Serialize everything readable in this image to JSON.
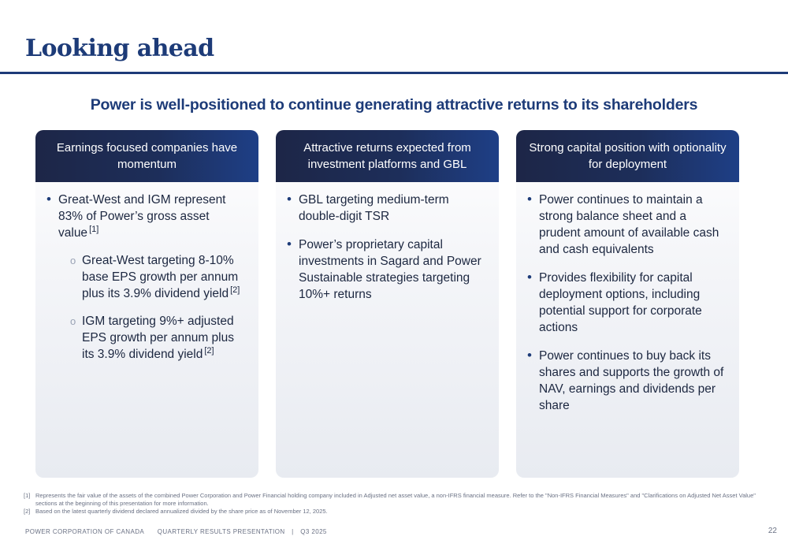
{
  "title": "Looking ahead",
  "subtitle": "Power is well-positioned to continue generating attractive returns to its shareholders",
  "columns": [
    {
      "header": "Earnings focused companies have momentum",
      "bullets": [
        {
          "text": "Great-West and IGM represent 83% of Power’s gross asset value",
          "ref": "[1]",
          "subs": [
            {
              "text": "Great-West targeting 8-10% base EPS growth per annum plus its 3.9% dividend yield",
              "ref": "[2]"
            },
            {
              "text": "IGM targeting 9%+ adjusted EPS growth per annum plus its 3.9% dividend yield",
              "ref": "[2]"
            }
          ]
        }
      ]
    },
    {
      "header": "Attractive returns expected from investment platforms and GBL",
      "bullets": [
        {
          "text": "GBL targeting medium-term double-digit TSR"
        },
        {
          "text": "Power’s proprietary capital investments in Sagard and Power Sustainable strategies targeting 10%+ returns"
        }
      ]
    },
    {
      "header": "Strong capital position with optionality for deployment",
      "bullets": [
        {
          "text": "Power continues to maintain a strong balance sheet and a prudent amount of available cash and cash equivalents"
        },
        {
          "text": "Provides flexibility for capital deployment options, including potential support for corporate actions"
        },
        {
          "text": "Power continues to buy back its shares and supports the growth of NAV, earnings and dividends per share"
        }
      ]
    }
  ],
  "footnotes": [
    {
      "mark": "[1]",
      "text": "Represents the fair value of the assets of the combined Power Corporation and Power Financial holding company included in Adjusted net asset value, a non-IFRS financial measure. Refer to the \"Non-IFRS Financial Measures\" and \"Clarifications on Adjusted Net Asset Value\" sections at the beginning of this presentation for more information."
    },
    {
      "mark": "[2]",
      "text": "Based on the latest quarterly dividend declared annualized divided by the share price as of November 12, 2025."
    }
  ],
  "footer": {
    "org": "POWER CORPORATION OF CANADA",
    "doc": "QUARTERLY RESULTS PRESENTATION",
    "separator": "|",
    "period": "Q3 2025",
    "page": "22"
  },
  "colors": {
    "brand_blue": "#1d3b78",
    "header_dark": "#1d2647"
  }
}
